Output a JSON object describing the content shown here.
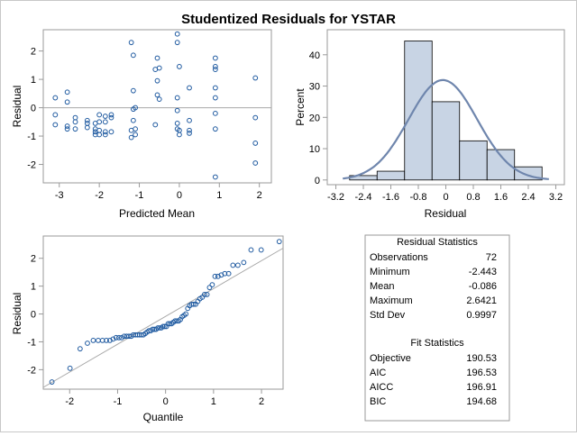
{
  "title": "Studentized Residuals for YSTAR",
  "colors": {
    "marker": "#1f5aa0",
    "bar_fill": "#c8d4e4",
    "bar_stroke": "#000000",
    "curve": "#6f86ad",
    "frame": "#9a9a9a",
    "refline": "#a8a8a8"
  },
  "chart_data": [
    {
      "type": "scatter",
      "xlabel": "Predicted Mean",
      "ylabel": "Residual",
      "xlim": [
        -3.4,
        2.3
      ],
      "ylim": [
        -2.65,
        2.75
      ],
      "xticks": [
        "-3",
        "-2",
        "-1",
        "0",
        "1",
        "2"
      ],
      "yticks": [
        "-2",
        "-1",
        "0",
        "1",
        "2"
      ],
      "reference_line_y": 0,
      "points": [
        [
          -3.1,
          0.35
        ],
        [
          -3.1,
          -0.25
        ],
        [
          -3.1,
          -0.6
        ],
        [
          -2.8,
          0.55
        ],
        [
          -2.8,
          0.2
        ],
        [
          -2.8,
          -0.65
        ],
        [
          -2.8,
          -0.75
        ],
        [
          -2.6,
          -0.35
        ],
        [
          -2.6,
          -0.5
        ],
        [
          -2.6,
          -0.75
        ],
        [
          -2.3,
          -0.45
        ],
        [
          -2.3,
          -0.55
        ],
        [
          -2.3,
          -0.7
        ],
        [
          -2.1,
          -0.55
        ],
        [
          -2.1,
          -0.75
        ],
        [
          -2.1,
          -0.85
        ],
        [
          -2.1,
          -0.95
        ],
        [
          -2.0,
          -0.25
        ],
        [
          -2.0,
          -0.5
        ],
        [
          -2.0,
          -0.8
        ],
        [
          -2.0,
          -0.95
        ],
        [
          -1.85,
          -0.3
        ],
        [
          -1.85,
          -0.5
        ],
        [
          -1.85,
          -0.85
        ],
        [
          -1.85,
          -0.95
        ],
        [
          -1.7,
          -0.25
        ],
        [
          -1.7,
          -0.35
        ],
        [
          -1.7,
          -0.85
        ],
        [
          -1.2,
          2.3
        ],
        [
          -1.15,
          1.85
        ],
        [
          -1.15,
          0.6
        ],
        [
          -1.15,
          -0.05
        ],
        [
          -1.15,
          -0.45
        ],
        [
          -1.2,
          -0.8
        ],
        [
          -1.2,
          -1.05
        ],
        [
          -1.1,
          0.0
        ],
        [
          -1.1,
          -0.75
        ],
        [
          -1.1,
          -0.95
        ],
        [
          -0.55,
          1.75
        ],
        [
          -0.6,
          1.35
        ],
        [
          -0.5,
          1.4
        ],
        [
          -0.55,
          0.95
        ],
        [
          -0.55,
          0.45
        ],
        [
          -0.5,
          0.3
        ],
        [
          -0.6,
          -0.6
        ],
        [
          -0.05,
          2.6
        ],
        [
          -0.05,
          2.3
        ],
        [
          0.0,
          1.45
        ],
        [
          -0.05,
          0.35
        ],
        [
          -0.05,
          -0.1
        ],
        [
          -0.05,
          -0.55
        ],
        [
          -0.05,
          -0.75
        ],
        [
          0.0,
          -0.8
        ],
        [
          0.0,
          -0.95
        ],
        [
          0.25,
          0.7
        ],
        [
          0.25,
          -0.45
        ],
        [
          0.25,
          -0.8
        ],
        [
          0.25,
          -0.9
        ],
        [
          0.9,
          1.75
        ],
        [
          0.9,
          1.45
        ],
        [
          0.9,
          1.35
        ],
        [
          0.9,
          0.7
        ],
        [
          0.9,
          0.35
        ],
        [
          0.9,
          -0.2
        ],
        [
          0.9,
          -0.75
        ],
        [
          0.9,
          -2.443
        ],
        [
          1.9,
          1.05
        ],
        [
          1.9,
          -0.35
        ],
        [
          1.9,
          -1.25
        ],
        [
          1.9,
          -1.95
        ]
      ]
    },
    {
      "type": "bar",
      "xlabel": "Residual",
      "ylabel": "Percent",
      "xlim": [
        -3.45,
        3.45
      ],
      "ylim": [
        -1.5,
        48
      ],
      "xticks": [
        "-3.2",
        "-2.4",
        "-1.6",
        "-0.8",
        "0",
        "0.8",
        "1.6",
        "2.4",
        "3.2"
      ],
      "yticks": [
        "0",
        "10",
        "20",
        "30",
        "40"
      ],
      "bins": [
        {
          "from": -2.8,
          "to": -2.0,
          "percent": 1.4
        },
        {
          "from": -2.0,
          "to": -1.2,
          "percent": 2.8
        },
        {
          "from": -1.2,
          "to": -0.4,
          "percent": 44.4
        },
        {
          "from": -0.4,
          "to": 0.4,
          "percent": 25.0
        },
        {
          "from": 0.4,
          "to": 1.2,
          "percent": 12.5
        },
        {
          "from": 1.2,
          "to": 2.0,
          "percent": 9.7
        },
        {
          "from": 2.0,
          "to": 2.8,
          "percent": 4.2
        }
      ],
      "normal_curve": {
        "mean": -0.086,
        "std": 0.9997
      }
    },
    {
      "type": "scatter",
      "xlabel": "Quantile",
      "ylabel": "Residual",
      "xlim": [
        -2.55,
        2.45
      ],
      "ylim": [
        -2.7,
        2.8
      ],
      "xticks": [
        "-2",
        "-1",
        "0",
        "1",
        "2"
      ],
      "yticks": [
        "-2",
        "-1",
        "0",
        "1",
        "2"
      ],
      "reference_line": {
        "intercept": -0.086,
        "slope": 0.9997
      }
    }
  ],
  "residual_statistics": {
    "title": "Residual Statistics",
    "rows": [
      {
        "label": "Observations",
        "value": "72"
      },
      {
        "label": "Minimum",
        "value": "-2.443"
      },
      {
        "label": "Mean",
        "value": "-0.086"
      },
      {
        "label": "Maximum",
        "value": "2.6421"
      },
      {
        "label": "Std Dev",
        "value": "0.9997"
      }
    ]
  },
  "fit_statistics": {
    "title": "Fit Statistics",
    "rows": [
      {
        "label": "Objective",
        "value": "190.53"
      },
      {
        "label": "AIC",
        "value": "196.53"
      },
      {
        "label": "AICC",
        "value": "196.91"
      },
      {
        "label": "BIC",
        "value": "194.68"
      }
    ]
  }
}
